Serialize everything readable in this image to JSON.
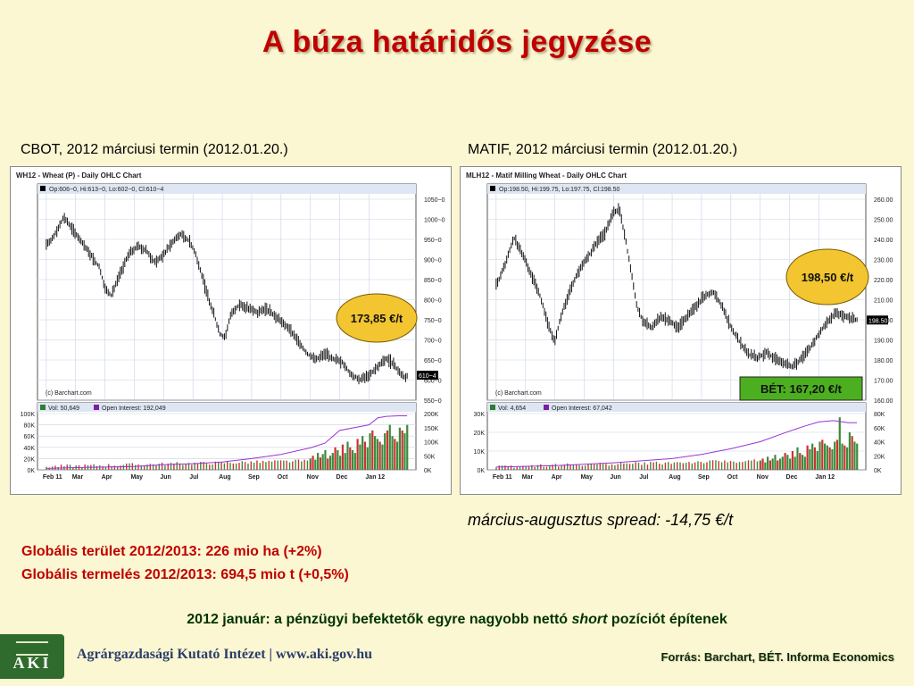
{
  "title": "A búza határidős jegyzése",
  "left_subtitle": "CBOT, 2012 márciusi termin (2012.01.20.)",
  "right_subtitle": "MATIF, 2012 márciusi termin (2012.01.20.)",
  "spread": "március-augusztus spread: -14,75 €/t",
  "stats": [
    "Globális terület 2012/2013: 226 mio ha (+2%)",
    "Globális termelés 2012/2013: 694,5 mio t (+0,5%)"
  ],
  "note": {
    "before": "2012 január: a pénzügyi befektetők egyre nagyobb nettó ",
    "italic": "short",
    "after": " pozíciót építenek"
  },
  "footer": {
    "logo": "AKI",
    "institute": "Agrárgazdasági Kutató Intézet | www.aki.gov.hu",
    "source": "Forrás: Barchart, BÉT. Informa Economics"
  },
  "colors": {
    "title": "#c00000",
    "badge_fill": "#f2c531",
    "bet_fill": "#4caf20",
    "oi_line": "#9a33d6",
    "vol_up": "#3c8a3c",
    "vol_down": "#d03030"
  },
  "chart_data": [
    {
      "type": "ohlc",
      "title": "WH12 - Wheat (P) - Daily OHLC Chart",
      "legend": "Op:606~0, Hi:613~0, Lo:602~0, Cl:610~4",
      "credit": "(c) Barchart.com",
      "price_ticks": [
        "1050~0",
        "1000~0",
        "950~0",
        "900~0",
        "850~0",
        "800~0",
        "750~0",
        "700~0",
        "650~0",
        "600~0",
        "550~0"
      ],
      "price_range": [
        550,
        1050
      ],
      "last_label": "610~4",
      "badge": "173,85 €/t",
      "vol_legend": [
        "Vol: 50,649",
        "Open Interest: 192,049"
      ],
      "vol_ticks_left": [
        "100K",
        "80K",
        "60K",
        "40K",
        "20K",
        "0K"
      ],
      "vol_range": [
        0,
        100
      ],
      "oi_ticks_right": [
        "200K",
        "150K",
        "100K",
        "50K",
        "0K"
      ],
      "oi_range": [
        0,
        200
      ],
      "months": [
        "Feb 11",
        "Mar",
        "Apr",
        "May",
        "Jun",
        "Jul",
        "Aug",
        "Sep",
        "Oct",
        "Nov",
        "Dec",
        "Jan 12"
      ],
      "close_path": [
        [
          0,
          920
        ],
        [
          0.3,
          950
        ],
        [
          0.6,
          990
        ],
        [
          0.9,
          960
        ],
        [
          1.2,
          930
        ],
        [
          1.5,
          900
        ],
        [
          1.8,
          870
        ],
        [
          2.0,
          820
        ],
        [
          2.2,
          800
        ],
        [
          2.5,
          850
        ],
        [
          2.8,
          900
        ],
        [
          3.1,
          920
        ],
        [
          3.4,
          910
        ],
        [
          3.7,
          880
        ],
        [
          4.0,
          900
        ],
        [
          4.3,
          930
        ],
        [
          4.6,
          950
        ],
        [
          4.9,
          930
        ],
        [
          5.1,
          900
        ],
        [
          5.3,
          850
        ],
        [
          5.5,
          800
        ],
        [
          5.7,
          760
        ],
        [
          5.9,
          710
        ],
        [
          6.1,
          700
        ],
        [
          6.3,
          760
        ],
        [
          6.6,
          780
        ],
        [
          6.9,
          770
        ],
        [
          7.2,
          760
        ],
        [
          7.5,
          770
        ],
        [
          7.8,
          750
        ],
        [
          8.0,
          740
        ],
        [
          8.3,
          720
        ],
        [
          8.6,
          690
        ],
        [
          8.9,
          660
        ],
        [
          9.2,
          650
        ],
        [
          9.5,
          660
        ],
        [
          9.8,
          650
        ],
        [
          10.1,
          640
        ],
        [
          10.4,
          610
        ],
        [
          10.7,
          600
        ],
        [
          11.0,
          610
        ],
        [
          11.3,
          630
        ],
        [
          11.6,
          650
        ],
        [
          11.8,
          640
        ],
        [
          12.0,
          620
        ],
        [
          12.2,
          605
        ],
        [
          12.3,
          610
        ]
      ],
      "volume": [
        20,
        25,
        18,
        30,
        22,
        28,
        35,
        20,
        25,
        30,
        40,
        35,
        25,
        45,
        30,
        50,
        40,
        35,
        30,
        55,
        45,
        60,
        50,
        40,
        65,
        70,
        60,
        55,
        50,
        45,
        65,
        70,
        80,
        60,
        55,
        50,
        75,
        70,
        65,
        80
      ],
      "open_interest": [
        [
          0,
          5
        ],
        [
          1,
          8
        ],
        [
          2,
          10
        ],
        [
          3,
          12
        ],
        [
          4,
          18
        ],
        [
          5,
          22
        ],
        [
          6,
          28
        ],
        [
          7,
          40
        ],
        [
          8,
          55
        ],
        [
          9,
          78
        ],
        [
          9.5,
          95
        ],
        [
          10,
          140
        ],
        [
          10.5,
          150
        ],
        [
          11,
          160
        ],
        [
          11.3,
          185
        ],
        [
          11.6,
          190
        ],
        [
          12,
          192
        ],
        [
          12.3,
          192
        ]
      ]
    },
    {
      "type": "ohlc",
      "title": "MLH12 - Matif Milling Wheat - Daily OHLC Chart",
      "legend": "Op:198.50, Hi:199.75, Lo:197.75, Cl:198.50",
      "credit": "(c) Barchart.com",
      "price_ticks": [
        "260.00",
        "250.00",
        "240.00",
        "230.00",
        "220.00",
        "210.00",
        "200.00",
        "190.00",
        "180.00",
        "170.00",
        "160.00"
      ],
      "price_range": [
        160,
        260
      ],
      "last_label": "198.50",
      "badge": "198,50 €/t",
      "bet_badge": "BÉT: 167,20 €/t",
      "vol_legend": [
        "Vol: 4,654",
        "Open Interest: 67,042"
      ],
      "vol_ticks_left": [
        "30K",
        "20K",
        "10K",
        "0K"
      ],
      "vol_range": [
        0,
        30
      ],
      "oi_ticks_right": [
        "80K",
        "60K",
        "40K",
        "20K",
        "0K"
      ],
      "oi_range": [
        0,
        80
      ],
      "months": [
        "Feb 11",
        "Mar",
        "Apr",
        "May",
        "Jun",
        "Jul",
        "Aug",
        "Sep",
        "Oct",
        "Nov",
        "Dec",
        "Jan 12"
      ],
      "close_path": [
        [
          0,
          215
        ],
        [
          0.3,
          225
        ],
        [
          0.6,
          238
        ],
        [
          0.9,
          230
        ],
        [
          1.2,
          220
        ],
        [
          1.5,
          210
        ],
        [
          1.8,
          195
        ],
        [
          2.0,
          188
        ],
        [
          2.2,
          200
        ],
        [
          2.5,
          212
        ],
        [
          2.8,
          222
        ],
        [
          3.1,
          228
        ],
        [
          3.4,
          235
        ],
        [
          3.7,
          240
        ],
        [
          4.0,
          250
        ],
        [
          4.2,
          252
        ],
        [
          4.4,
          238
        ],
        [
          4.6,
          222
        ],
        [
          4.8,
          205
        ],
        [
          5.0,
          198
        ],
        [
          5.3,
          195
        ],
        [
          5.6,
          200
        ],
        [
          5.9,
          198
        ],
        [
          6.2,
          195
        ],
        [
          6.5,
          200
        ],
        [
          6.8,
          205
        ],
        [
          7.1,
          210
        ],
        [
          7.4,
          212
        ],
        [
          7.7,
          205
        ],
        [
          8.0,
          195
        ],
        [
          8.3,
          188
        ],
        [
          8.6,
          182
        ],
        [
          8.9,
          180
        ],
        [
          9.2,
          183
        ],
        [
          9.5,
          180
        ],
        [
          9.8,
          178
        ],
        [
          10.1,
          176
        ],
        [
          10.4,
          180
        ],
        [
          10.7,
          185
        ],
        [
          11.0,
          192
        ],
        [
          11.3,
          198
        ],
        [
          11.6,
          202
        ],
        [
          11.9,
          200
        ],
        [
          12.1,
          199
        ],
        [
          12.3,
          198.5
        ]
      ],
      "volume": [
        5,
        6,
        4,
        7,
        5,
        6,
        8,
        5,
        6,
        7,
        9,
        8,
        6,
        10,
        7,
        12,
        9,
        8,
        7,
        13,
        11,
        14,
        12,
        10,
        15,
        16,
        14,
        13,
        12,
        11,
        15,
        16,
        28,
        14,
        13,
        12,
        20,
        18,
        15,
        14
      ],
      "open_interest": [
        [
          0,
          4
        ],
        [
          1,
          5
        ],
        [
          2,
          6
        ],
        [
          3,
          8
        ],
        [
          4,
          10
        ],
        [
          5,
          13
        ],
        [
          6,
          16
        ],
        [
          7,
          22
        ],
        [
          8,
          30
        ],
        [
          9,
          40
        ],
        [
          10,
          55
        ],
        [
          10.5,
          62
        ],
        [
          11,
          68
        ],
        [
          11.5,
          70
        ],
        [
          12,
          67
        ],
        [
          12.3,
          67
        ]
      ]
    }
  ]
}
